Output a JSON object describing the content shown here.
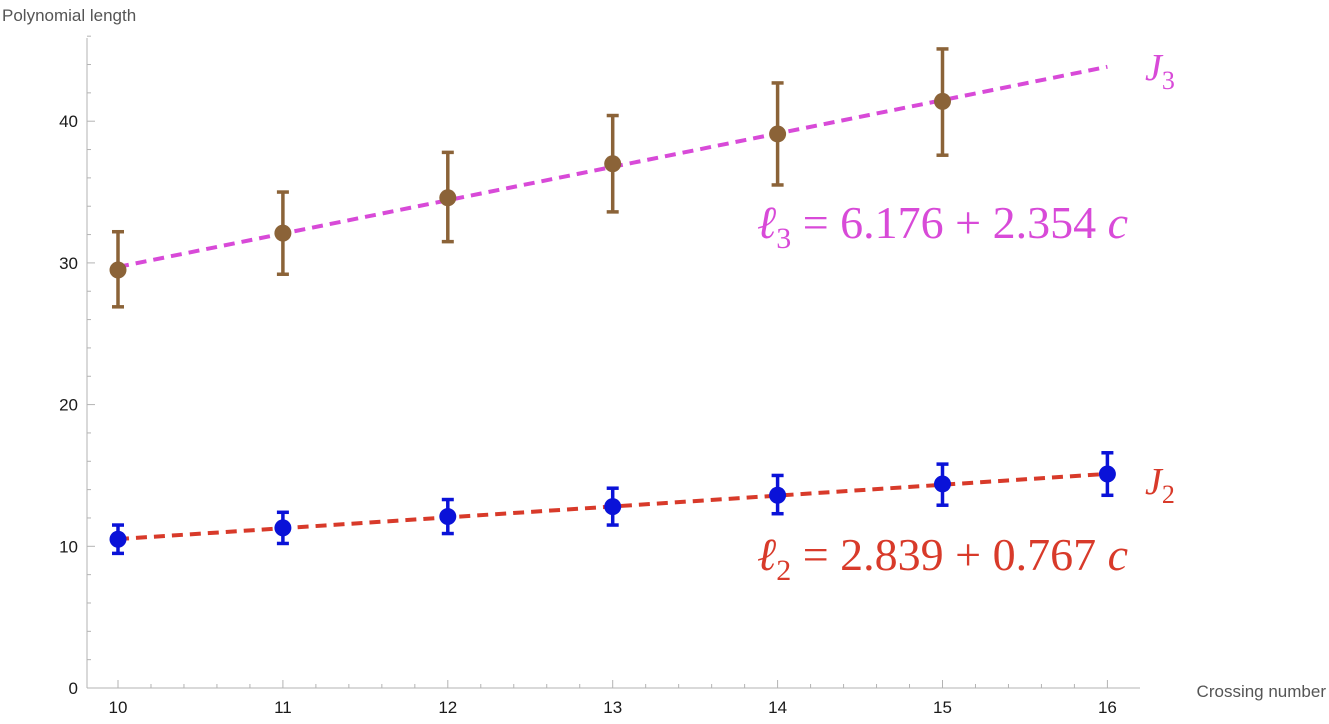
{
  "chart_data": {
    "type": "scatter",
    "xlabel": "Crossing number",
    "ylabel": "Polynomial length",
    "xlim": [
      9.82,
      16.2
    ],
    "ylim": [
      0,
      48
    ],
    "x_ticks": [
      10,
      11,
      12,
      13,
      14,
      15,
      16
    ],
    "y_ticks": [
      0,
      10,
      20,
      30,
      40
    ],
    "grid": false,
    "series": [
      {
        "name": "J3",
        "x": [
          10,
          11,
          12,
          13,
          14,
          15
        ],
        "y": [
          29.5,
          32.1,
          34.6,
          37.0,
          39.1,
          41.4
        ],
        "err_low": [
          26.9,
          29.2,
          31.5,
          33.6,
          35.5,
          37.6
        ],
        "err_high": [
          32.2,
          35.0,
          37.8,
          40.4,
          42.7,
          45.1
        ],
        "point_color": "#8b6338",
        "fit": {
          "intercept": 6.176,
          "slope": 2.354,
          "color": "#d84ad8",
          "x_range": [
            10,
            16
          ]
        },
        "label": {
          "sym": "J",
          "sub": "3",
          "color": "#d84ad8"
        },
        "equation": {
          "lhs_sym": "ℓ",
          "lhs_sub": "3",
          "rest": " = 6.176 + 2.354 ",
          "var": "c",
          "color": "#d84ad8"
        }
      },
      {
        "name": "J2",
        "x": [
          10,
          11,
          12,
          13,
          14,
          15,
          16
        ],
        "y": [
          10.5,
          11.3,
          12.1,
          12.8,
          13.6,
          14.4,
          15.1
        ],
        "err_low": [
          9.5,
          10.2,
          10.9,
          11.5,
          12.3,
          12.9,
          13.6
        ],
        "err_high": [
          11.5,
          12.4,
          13.3,
          14.1,
          15.0,
          15.8,
          16.6
        ],
        "point_color": "#0a12d8",
        "fit": {
          "intercept": 2.839,
          "slope": 0.767,
          "color": "#d83a2a",
          "x_range": [
            10,
            16
          ]
        },
        "label": {
          "sym": "J",
          "sub": "2",
          "color": "#d83a2a"
        },
        "equation": {
          "lhs_sym": "ℓ",
          "lhs_sub": "2",
          "rest": " = 2.839 + 0.767 ",
          "var": "c",
          "color": "#d83a2a"
        }
      }
    ]
  }
}
